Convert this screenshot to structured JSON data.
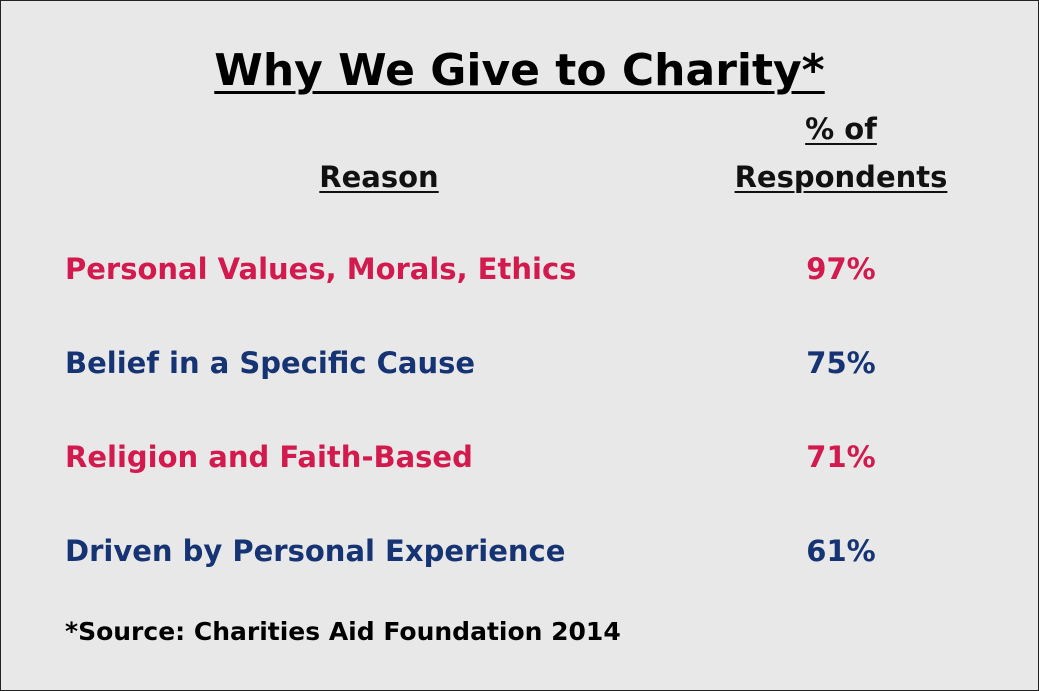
{
  "title": "Why We Give to Charity*",
  "table": {
    "header": [
      "Reason",
      "% of\nRespondents"
    ],
    "rows": [
      {
        "reason": "Personal Values, Morals, Ethics",
        "percent": "97%",
        "color": "#d21a4e"
      },
      {
        "reason": "Belief in a Specific Cause",
        "percent": "75%",
        "color": "#163473"
      },
      {
        "reason": "Religion and Faith-Based",
        "percent": "71%",
        "color": "#d21a4e"
      },
      {
        "reason": "Driven by Personal Experience",
        "percent": "61%",
        "color": "#163473"
      }
    ]
  },
  "footnote": "*Source: Charities Aid Foundation 2014"
}
